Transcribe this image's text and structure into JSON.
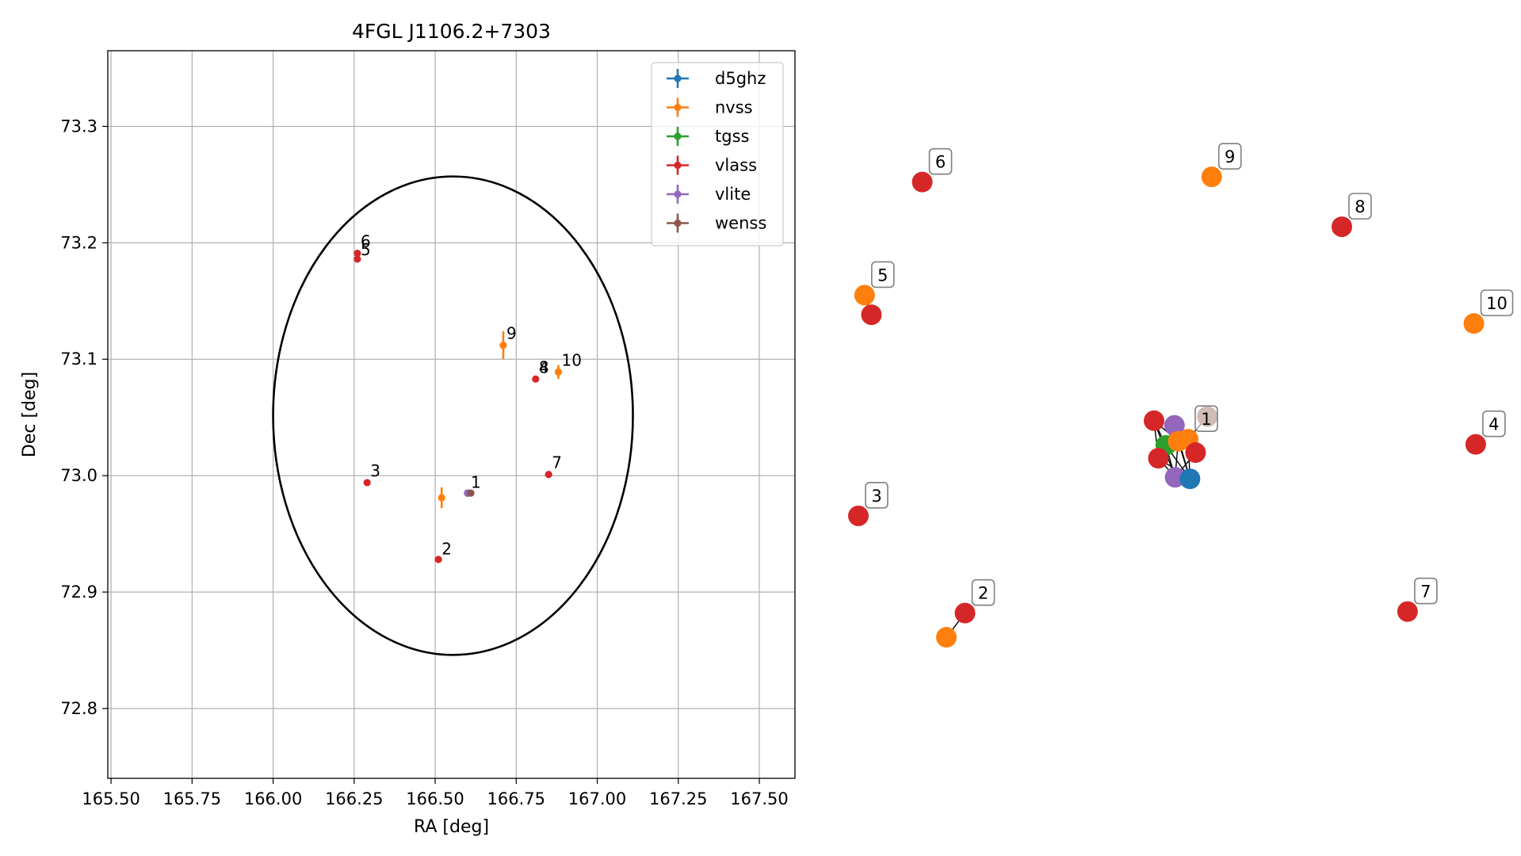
{
  "chart_data": [
    {
      "type": "scatter",
      "title": "4FGL J1106.2+7303",
      "xlabel": "RA [deg]",
      "ylabel": "Dec [deg]",
      "xlim": [
        165.49,
        167.61
      ],
      "ylim": [
        72.74,
        73.365
      ],
      "xticks": [
        "165.50",
        "165.75",
        "166.00",
        "166.25",
        "166.50",
        "166.75",
        "167.00",
        "167.25",
        "167.50"
      ],
      "yticks": [
        "72.8",
        "72.9",
        "73.0",
        "73.1",
        "73.2",
        "73.3"
      ],
      "grid": true,
      "legend_position": "top-right",
      "ellipse": {
        "center_ra": 166.55,
        "center_dec": 73.051,
        "ra_min": 166.0,
        "ra_max": 167.11,
        "dec_min": 72.846,
        "dec_max": 73.257
      },
      "series": [
        {
          "name": "d5ghz",
          "color": "#1f77b4",
          "points": [
            {
              "ra": 166.6,
              "dec": 72.985,
              "err_ra": 0,
              "err_dec": 0
            }
          ]
        },
        {
          "name": "nvss",
          "color": "#ff7f0e",
          "points": [
            {
              "ra": 166.52,
              "dec": 72.981,
              "err_ra": 0,
              "err_dec": 0.009
            },
            {
              "ra": 166.71,
              "dec": 73.112,
              "err_ra": 0,
              "err_dec": 0.012
            },
            {
              "ra": 166.88,
              "dec": 73.089,
              "err_ra": 0,
              "err_dec": 0.006
            }
          ]
        },
        {
          "name": "tgss",
          "color": "#2ca02c",
          "points": [
            {
              "ra": 166.6,
              "dec": 72.985,
              "err_ra": 0,
              "err_dec": 0
            }
          ]
        },
        {
          "name": "vlass",
          "color": "#d62728",
          "points": [
            {
              "ra": 166.26,
              "dec": 73.186,
              "err_ra": 0,
              "err_dec": 0
            },
            {
              "ra": 166.26,
              "dec": 73.191,
              "err_ra": 0,
              "err_dec": 0
            },
            {
              "ra": 166.29,
              "dec": 72.994,
              "err_ra": 0,
              "err_dec": 0
            },
            {
              "ra": 166.51,
              "dec": 72.928,
              "err_ra": 0,
              "err_dec": 0
            },
            {
              "ra": 166.81,
              "dec": 73.083,
              "err_ra": 0,
              "err_dec": 0
            },
            {
              "ra": 166.85,
              "dec": 73.001,
              "err_ra": 0,
              "err_dec": 0
            },
            {
              "ra": 166.6,
              "dec": 72.985,
              "err_ra": 0,
              "err_dec": 0
            }
          ]
        },
        {
          "name": "vlite",
          "color": "#9467bd",
          "points": [
            {
              "ra": 166.6,
              "dec": 72.985,
              "err_ra": 0,
              "err_dec": 0
            }
          ]
        },
        {
          "name": "wenss",
          "color": "#8c564b",
          "points": [
            {
              "ra": 166.61,
              "dec": 72.985,
              "err_ra": 0,
              "err_dec": 0
            }
          ]
        }
      ],
      "labels": [
        {
          "text": "1",
          "ra": 166.61,
          "dec": 72.986
        },
        {
          "text": "2",
          "ra": 166.52,
          "dec": 72.929
        },
        {
          "text": "3",
          "ra": 166.3,
          "dec": 72.996
        },
        {
          "text": "5",
          "ra": 166.27,
          "dec": 73.186
        },
        {
          "text": "6",
          "ra": 166.27,
          "dec": 73.193
        },
        {
          "text": "9",
          "ra": 166.72,
          "dec": 73.114
        },
        {
          "text": "4",
          "ra": 166.82,
          "dec": 73.085
        },
        {
          "text": "8",
          "ra": 166.82,
          "dec": 73.085
        },
        {
          "text": "10",
          "ra": 166.89,
          "dec": 73.091
        },
        {
          "text": "7",
          "ra": 166.86,
          "dec": 73.003
        }
      ]
    },
    {
      "type": "scatter",
      "subtype": "network-graph",
      "nodes": [
        {
          "id": "6",
          "color": "#d62728",
          "u": 0.103,
          "v": 0.905
        },
        {
          "id": "9",
          "color": "#ff7f0e",
          "u": 0.57,
          "v": 0.915
        },
        {
          "id": "8",
          "color": "#d62728",
          "u": 0.78,
          "v": 0.818
        },
        {
          "id": "5",
          "color": "#ff7f0e",
          "u": 0.01,
          "v": 0.685
        },
        {
          "id": "5b",
          "color": "#d62728",
          "u": 0.021,
          "v": 0.647
        },
        {
          "id": "10",
          "color": "#ff7f0e",
          "u": 0.993,
          "v": 0.63
        },
        {
          "id": "4",
          "color": "#d62728",
          "u": 0.996,
          "v": 0.395
        },
        {
          "id": "3",
          "color": "#d62728",
          "u": 0.0,
          "v": 0.256
        },
        {
          "id": "2",
          "color": "#d62728",
          "u": 0.172,
          "v": 0.067
        },
        {
          "id": "2b",
          "color": "#ff7f0e",
          "u": 0.142,
          "v": 0.02
        },
        {
          "id": "7",
          "color": "#d62728",
          "u": 0.886,
          "v": 0.07
        },
        {
          "id": "c-red-a",
          "color": "#d62728",
          "u": 0.477,
          "v": 0.441
        },
        {
          "id": "c-purple-a",
          "color": "#9467bd",
          "u": 0.51,
          "v": 0.432
        },
        {
          "id": "c-brown",
          "color": "#8c564b",
          "u": 0.563,
          "v": 0.449
        },
        {
          "id": "c-green",
          "color": "#2ca02c",
          "u": 0.496,
          "v": 0.393
        },
        {
          "id": "c-orange-a",
          "color": "#ff7f0e",
          "u": 0.516,
          "v": 0.401
        },
        {
          "id": "c-orange-b",
          "color": "#ff7f0e",
          "u": 0.532,
          "v": 0.405
        },
        {
          "id": "c-red-b",
          "color": "#d62728",
          "u": 0.544,
          "v": 0.379
        },
        {
          "id": "c-red-c",
          "color": "#d62728",
          "u": 0.484,
          "v": 0.368
        },
        {
          "id": "c-purple-b",
          "color": "#9467bd",
          "u": 0.511,
          "v": 0.331
        },
        {
          "id": "c-blue",
          "color": "#1f77b4",
          "u": 0.535,
          "v": 0.328
        }
      ],
      "edges": [
        [
          "5",
          "5b"
        ],
        [
          "2",
          "2b"
        ],
        [
          "c-red-a",
          "c-green"
        ],
        [
          "c-red-a",
          "c-red-c"
        ],
        [
          "c-red-a",
          "c-orange-a"
        ],
        [
          "c-red-a",
          "c-purple-b"
        ],
        [
          "c-purple-a",
          "c-green"
        ],
        [
          "c-purple-a",
          "c-blue"
        ],
        [
          "c-purple-a",
          "c-red-b"
        ],
        [
          "c-green",
          "c-red-c"
        ],
        [
          "c-green",
          "c-blue"
        ],
        [
          "c-green",
          "c-purple-b"
        ],
        [
          "c-orange-a",
          "c-red-b"
        ],
        [
          "c-orange-a",
          "c-blue"
        ],
        [
          "c-orange-a",
          "c-purple-b"
        ],
        [
          "c-orange-b",
          "c-red-c"
        ],
        [
          "c-orange-b",
          "c-blue"
        ],
        [
          "c-orange-b",
          "c-brown"
        ],
        [
          "c-red-b",
          "c-purple-b"
        ],
        [
          "c-red-c",
          "c-blue"
        ],
        [
          "c-red-c",
          "c-purple-b"
        ]
      ],
      "labels": [
        {
          "text": "6",
          "node": "6"
        },
        {
          "text": "9",
          "node": "9"
        },
        {
          "text": "8",
          "node": "8"
        },
        {
          "text": "5",
          "node": "5"
        },
        {
          "text": "10",
          "node": "10"
        },
        {
          "text": "1",
          "node": "c-orange-b"
        },
        {
          "text": "4",
          "node": "4"
        },
        {
          "text": "3",
          "node": "3"
        },
        {
          "text": "2",
          "node": "2"
        },
        {
          "text": "7",
          "node": "7"
        }
      ]
    }
  ]
}
